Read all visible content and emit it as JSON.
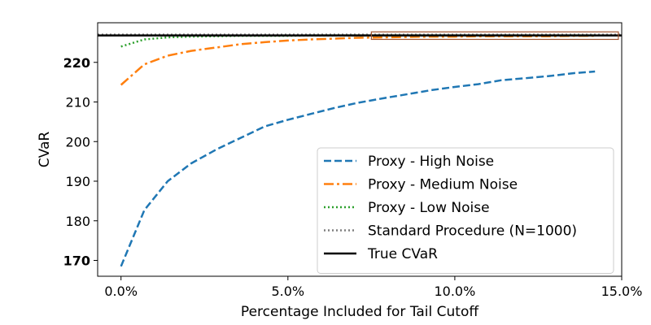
{
  "chart_data": {
    "type": "line",
    "xlabel": "Percentage Included for Tail Cutoff",
    "ylabel": "CVaR",
    "xlim": [
      -0.7,
      15.0
    ],
    "ylim": [
      166,
      230
    ],
    "x_ticks": [
      {
        "value": 0,
        "label": "0.0%"
      },
      {
        "value": 5,
        "label": "5.0%"
      },
      {
        "value": 10,
        "label": "10.0%"
      },
      {
        "value": 15,
        "label": "15.0%"
      }
    ],
    "y_ticks": [
      {
        "value": 170,
        "label": "170",
        "bold": true
      },
      {
        "value": 180,
        "label": "180",
        "bold": false
      },
      {
        "value": 190,
        "label": "190",
        "bold": false
      },
      {
        "value": 200,
        "label": "200",
        "bold": false
      },
      {
        "value": 210,
        "label": "210",
        "bold": false
      },
      {
        "value": 220,
        "label": "220",
        "bold": true
      }
    ],
    "legend_position": "lower-right",
    "series": [
      {
        "name": "Proxy - High Noise",
        "color": "#1f77b4",
        "style": "dashed",
        "x": [
          0.0,
          0.7,
          1.4,
          2.1,
          2.9,
          3.6,
          4.3,
          5.0,
          5.7,
          6.4,
          7.1,
          7.9,
          8.6,
          9.3,
          10.0,
          10.7,
          11.4,
          12.1,
          12.9,
          13.6,
          14.2
        ],
        "y": [
          168.5,
          182.7,
          190.0,
          194.5,
          198.2,
          201.0,
          203.8,
          205.5,
          207.0,
          208.5,
          209.8,
          211.0,
          212.0,
          213.0,
          213.8,
          214.5,
          215.5,
          216.0,
          216.6,
          217.3,
          217.7
        ]
      },
      {
        "name": "Proxy - Medium Noise",
        "color": "#ff7f0e",
        "style": "dashdot",
        "x": [
          0.0,
          0.7,
          1.4,
          2.1,
          2.9,
          3.6,
          4.3,
          5.0,
          5.7,
          6.4,
          7.1,
          7.9,
          8.6,
          9.3,
          10.0,
          10.7,
          11.4,
          12.1,
          12.9,
          13.6,
          14.2
        ],
        "y": [
          214.3,
          219.5,
          221.7,
          222.9,
          223.8,
          224.6,
          225.1,
          225.5,
          225.8,
          226.0,
          226.2,
          226.3,
          226.4,
          226.5,
          226.5,
          226.6,
          226.6,
          226.6,
          226.6,
          226.7,
          226.7
        ]
      },
      {
        "name": "Proxy - Low Noise",
        "color": "#2ca02c",
        "style": "dotted",
        "x": [
          0.0,
          0.7,
          1.4,
          2.1,
          2.9,
          3.6,
          4.3,
          5.0,
          5.7,
          6.4,
          7.1,
          7.9,
          8.6,
          9.3,
          10.0,
          10.7,
          11.4,
          12.1,
          12.9,
          13.6,
          14.2
        ],
        "y": [
          224.0,
          225.8,
          226.3,
          226.5,
          226.6,
          226.7,
          226.7,
          226.7,
          226.8,
          226.8,
          226.8,
          226.8,
          226.8,
          226.8,
          226.8,
          226.8,
          226.8,
          226.8,
          226.8,
          226.8,
          226.8
        ]
      },
      {
        "name": "Standard Procedure (N=1000)",
        "color": "#7f7f7f",
        "style": "dotted",
        "x": [
          -0.7,
          15.0
        ],
        "y": [
          227.0,
          227.0
        ]
      },
      {
        "name": "True CVaR",
        "color": "#000000",
        "style": "solid",
        "x": [
          -0.7,
          15.0
        ],
        "y": [
          226.8,
          226.8
        ]
      }
    ],
    "annotations": [
      {
        "type": "rectangle",
        "x_range": [
          7.5,
          14.9
        ],
        "y_range": [
          225.8,
          227.7
        ],
        "color": "#a0522d"
      }
    ]
  }
}
